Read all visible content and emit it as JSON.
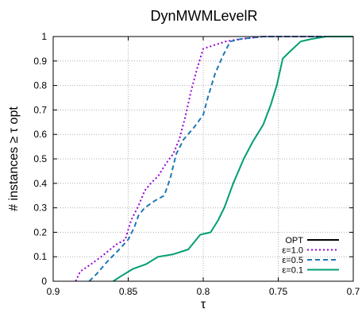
{
  "chart_data": {
    "type": "line",
    "title": "DynMWMLevelR",
    "xlabel": "τ",
    "ylabel": "# instances ≥ τ opt",
    "xlim": [
      0.9,
      0.7
    ],
    "ylim": [
      0,
      1
    ],
    "x_reversed": true,
    "grid": true,
    "legend_position": "bottom-right",
    "x_ticks": [
      "0.9",
      "0.85",
      "0.8",
      "0.75",
      "0.7"
    ],
    "y_ticks": [
      "0",
      "0.1",
      "0.2",
      "0.3",
      "0.4",
      "0.5",
      "0.6",
      "0.7",
      "0.8",
      "0.9",
      "1"
    ],
    "series": [
      {
        "name": "OPT",
        "color": "#000000",
        "style": "solid",
        "points": []
      },
      {
        "name": "ε=1.0",
        "color": "#9400d3",
        "style": "dotted",
        "points": [
          [
            0.885,
            0
          ],
          [
            0.882,
            0.04
          ],
          [
            0.877,
            0.06
          ],
          [
            0.868,
            0.1
          ],
          [
            0.858,
            0.15
          ],
          [
            0.852,
            0.17
          ],
          [
            0.848,
            0.25
          ],
          [
            0.843,
            0.31
          ],
          [
            0.839,
            0.37
          ],
          [
            0.835,
            0.4
          ],
          [
            0.83,
            0.43
          ],
          [
            0.825,
            0.48
          ],
          [
            0.82,
            0.52
          ],
          [
            0.816,
            0.58
          ],
          [
            0.812,
            0.67
          ],
          [
            0.808,
            0.78
          ],
          [
            0.804,
            0.87
          ],
          [
            0.8,
            0.95
          ],
          [
            0.795,
            0.96
          ],
          [
            0.79,
            0.97
          ],
          [
            0.785,
            0.98
          ],
          [
            0.775,
            0.99
          ],
          [
            0.76,
            1.0
          ],
          [
            0.7,
            1.0
          ]
        ]
      },
      {
        "name": "ε=0.5",
        "color": "#1f77b4",
        "style": "dashed",
        "points": [
          [
            0.876,
            0
          ],
          [
            0.871,
            0.03
          ],
          [
            0.864,
            0.08
          ],
          [
            0.856,
            0.13
          ],
          [
            0.85,
            0.17
          ],
          [
            0.846,
            0.22
          ],
          [
            0.843,
            0.27
          ],
          [
            0.839,
            0.3
          ],
          [
            0.832,
            0.33
          ],
          [
            0.826,
            0.35
          ],
          [
            0.822,
            0.42
          ],
          [
            0.818,
            0.52
          ],
          [
            0.813,
            0.58
          ],
          [
            0.806,
            0.63
          ],
          [
            0.8,
            0.68
          ],
          [
            0.797,
            0.75
          ],
          [
            0.792,
            0.85
          ],
          [
            0.787,
            0.92
          ],
          [
            0.782,
            0.98
          ],
          [
            0.775,
            0.99
          ],
          [
            0.76,
            1.0
          ],
          [
            0.7,
            1.0
          ]
        ]
      },
      {
        "name": "ε=0.1",
        "color": "#009e73",
        "style": "solid",
        "points": [
          [
            0.86,
            0
          ],
          [
            0.855,
            0.02
          ],
          [
            0.847,
            0.05
          ],
          [
            0.838,
            0.07
          ],
          [
            0.83,
            0.1
          ],
          [
            0.82,
            0.11
          ],
          [
            0.81,
            0.13
          ],
          [
            0.802,
            0.19
          ],
          [
            0.795,
            0.2
          ],
          [
            0.79,
            0.25
          ],
          [
            0.786,
            0.3
          ],
          [
            0.78,
            0.4
          ],
          [
            0.773,
            0.5
          ],
          [
            0.767,
            0.57
          ],
          [
            0.76,
            0.64
          ],
          [
            0.755,
            0.72
          ],
          [
            0.751,
            0.8
          ],
          [
            0.747,
            0.91
          ],
          [
            0.742,
            0.94
          ],
          [
            0.735,
            0.98
          ],
          [
            0.728,
            0.99
          ],
          [
            0.718,
            1.0
          ],
          [
            0.7,
            1.0
          ]
        ]
      }
    ]
  }
}
